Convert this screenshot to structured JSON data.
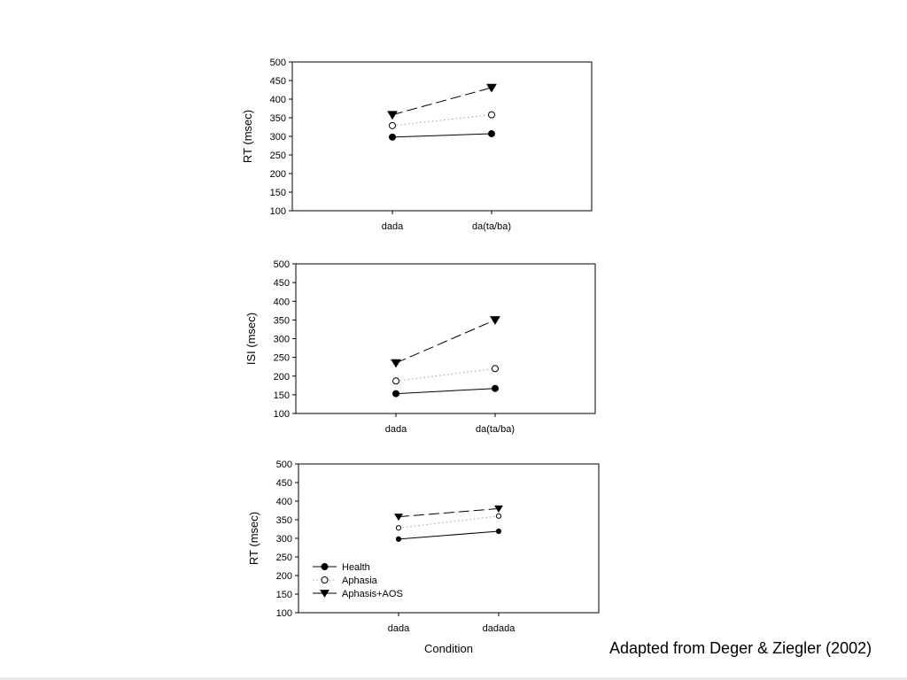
{
  "citation": "Adapted from Deger & Ziegler (2002)",
  "colors": {
    "ink": "#000000",
    "background": "#ffffff"
  },
  "chart_data": [
    {
      "type": "line",
      "ylabel": "RT (msec)",
      "xlabel": "",
      "ylim": [
        100,
        500
      ],
      "yticks": [
        100,
        150,
        200,
        250,
        300,
        350,
        400,
        450,
        500
      ],
      "categories": [
        "dada",
        "da(ta/ba)"
      ],
      "grid": false,
      "legend": null,
      "series": [
        {
          "name": "Health",
          "marker": "filled-circle",
          "line": "solid",
          "values": [
            298,
            307
          ]
        },
        {
          "name": "Aphasia",
          "marker": "open-circle",
          "line": "dotted",
          "values": [
            329,
            358
          ]
        },
        {
          "name": "Aphasis+AOS",
          "marker": "filled-triangle-down",
          "line": "dashed",
          "values": [
            358,
            431
          ]
        }
      ]
    },
    {
      "type": "line",
      "ylabel": "ISI (msec)",
      "xlabel": "",
      "ylim": [
        100,
        500
      ],
      "yticks": [
        100,
        150,
        200,
        250,
        300,
        350,
        400,
        450,
        500
      ],
      "categories": [
        "dada",
        "da(ta/ba)"
      ],
      "grid": false,
      "legend": null,
      "series": [
        {
          "name": "Health",
          "marker": "filled-circle",
          "line": "solid",
          "values": [
            153,
            167
          ]
        },
        {
          "name": "Aphasia",
          "marker": "open-circle",
          "line": "dotted",
          "values": [
            187,
            220
          ]
        },
        {
          "name": "Aphasis+AOS",
          "marker": "filled-triangle-down",
          "line": "dashed",
          "values": [
            235,
            350
          ]
        }
      ]
    },
    {
      "type": "line",
      "ylabel": "RT (msec)",
      "xlabel": "Condition",
      "ylim": [
        100,
        500
      ],
      "yticks": [
        100,
        150,
        200,
        250,
        300,
        350,
        400,
        450,
        500
      ],
      "categories": [
        "dada",
        "dadada"
      ],
      "grid": false,
      "legend": "bottom-left",
      "series": [
        {
          "name": "Health",
          "marker": "filled-circle",
          "line": "solid",
          "values": [
            298,
            319
          ]
        },
        {
          "name": "Aphasia",
          "marker": "open-circle",
          "line": "dotted",
          "values": [
            328,
            360
          ]
        },
        {
          "name": "Aphasis+AOS",
          "marker": "filled-triangle-down",
          "line": "dashed",
          "values": [
            358,
            380
          ]
        }
      ]
    }
  ]
}
